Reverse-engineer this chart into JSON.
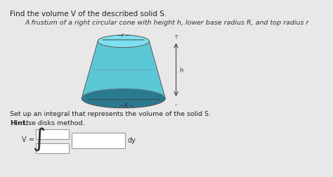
{
  "bg_color": "#e8e8e8",
  "title_text": "Find the volume V of the described solid S.",
  "subtitle_text": "A frustum of a right circular cone with height h, lower base radius R, and top radius r",
  "set_up_text": "Set up an integral that represents the volume of the solid S.",
  "hint_text": "Hint: Use disks method.",
  "v_label": "V =",
  "dy_label": "dy",
  "frustum_color_top": "#5bc8d8",
  "frustum_color_bottom": "#3aa8c0",
  "frustum_color_dark": "#2a7a90",
  "title_fontsize": 7.5,
  "subtitle_fontsize": 6.8,
  "body_fontsize": 6.8,
  "hint_fontsize": 6.8
}
